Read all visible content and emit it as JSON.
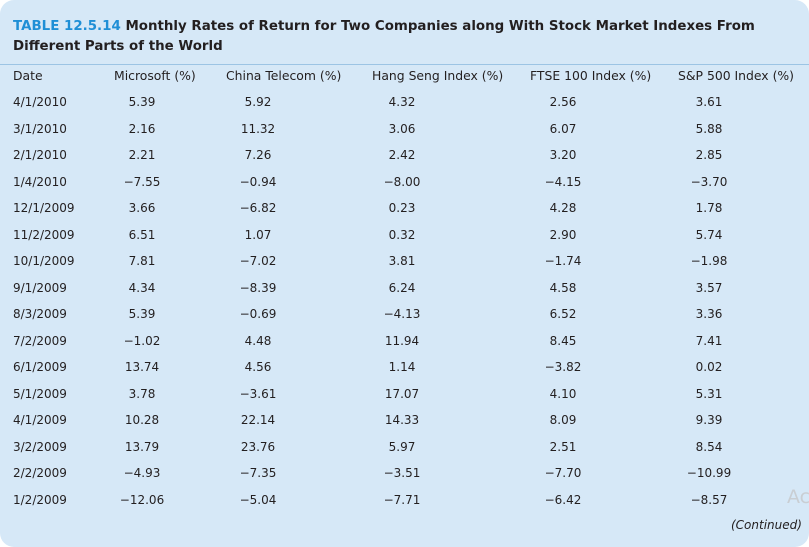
{
  "table": {
    "title_number": "TABLE 12.5.14",
    "title_text": "Monthly Rates of Return for Two Companies along With Stock Market Indexes From Different Parts of the World",
    "columns": [
      "Date",
      "Microsoft (%)",
      "China Telecom (%)",
      "Hang Seng Index (%)",
      "FTSE 100 Index (%)",
      "S&P 500 Index (%)"
    ],
    "rows": [
      [
        "4/1/2010",
        "5.39",
        "5.92",
        "4.32",
        "2.56",
        "3.61"
      ],
      [
        "3/1/2010",
        "2.16",
        "11.32",
        "3.06",
        "6.07",
        "5.88"
      ],
      [
        "2/1/2010",
        "2.21",
        "7.26",
        "2.42",
        "3.20",
        "2.85"
      ],
      [
        "1/4/2010",
        "−7.55",
        "−0.94",
        "−8.00",
        "−4.15",
        "−3.70"
      ],
      [
        "12/1/2009",
        "3.66",
        "−6.82",
        "0.23",
        "4.28",
        "1.78"
      ],
      [
        "11/2/2009",
        "6.51",
        "1.07",
        "0.32",
        "2.90",
        "5.74"
      ],
      [
        "10/1/2009",
        "7.81",
        "−7.02",
        "3.81",
        "−1.74",
        "−1.98"
      ],
      [
        "9/1/2009",
        "4.34",
        "−8.39",
        "6.24",
        "4.58",
        "3.57"
      ],
      [
        "8/3/2009",
        "5.39",
        "−0.69",
        "−4.13",
        "6.52",
        "3.36"
      ],
      [
        "7/2/2009",
        "−1.02",
        "4.48",
        "11.94",
        "8.45",
        "7.41"
      ],
      [
        "6/1/2009",
        "13.74",
        "4.56",
        "1.14",
        "−3.82",
        "0.02"
      ],
      [
        "5/1/2009",
        "3.78",
        "−3.61",
        "17.07",
        "4.10",
        "5.31"
      ],
      [
        "4/1/2009",
        "10.28",
        "22.14",
        "14.33",
        "8.09",
        "9.39"
      ],
      [
        "3/2/2009",
        "13.79",
        "23.76",
        "5.97",
        "2.51",
        "8.54"
      ],
      [
        "2/2/2009",
        "−4.93",
        "−7.35",
        "−3.51",
        "−7.70",
        "−10.99"
      ],
      [
        "1/2/2009",
        "−12.06",
        "−5.04",
        "−7.71",
        "−6.42",
        "−8.57"
      ]
    ],
    "continued_label": "(Continued)"
  },
  "watermark_text": "Ac",
  "colors": {
    "panel_background": "#d6e8f7",
    "title_number": "#1f8fd6",
    "text": "#231f20"
  }
}
